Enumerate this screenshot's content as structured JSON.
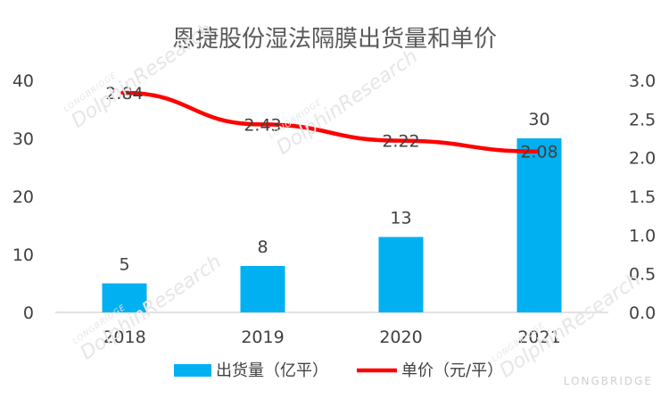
{
  "chart_data": {
    "type": "bar+line",
    "title": "恩捷股份湿法隔膜出货量和单价",
    "categories": [
      "2018",
      "2019",
      "2020",
      "2021"
    ],
    "series": [
      {
        "name": "出货量（亿平）",
        "type": "bar",
        "axis": "left",
        "color": "#00b0f0",
        "values": [
          5,
          8,
          13,
          30
        ],
        "labels": [
          "5",
          "8",
          "13",
          "30"
        ]
      },
      {
        "name": "单价（元/平）",
        "type": "line",
        "axis": "right",
        "color": "#ff0000",
        "values": [
          2.84,
          2.43,
          2.22,
          2.08
        ],
        "labels": [
          "2.84",
          "2.43",
          "2.22",
          "2.08"
        ]
      }
    ],
    "y_left": {
      "min": 0,
      "max": 40,
      "ticks": [
        "0",
        "10",
        "20",
        "30",
        "40"
      ]
    },
    "y_right": {
      "min": 0,
      "max": 3.0,
      "ticks": [
        "0.0",
        "0.5",
        "1.0",
        "1.5",
        "2.0",
        "2.5",
        "3.0"
      ]
    },
    "grid": false,
    "legend_position": "bottom"
  },
  "watermark": {
    "small": "LONGBRIDGE",
    "big": "DolphinResearch",
    "brand": "LONGBRIDGE"
  }
}
